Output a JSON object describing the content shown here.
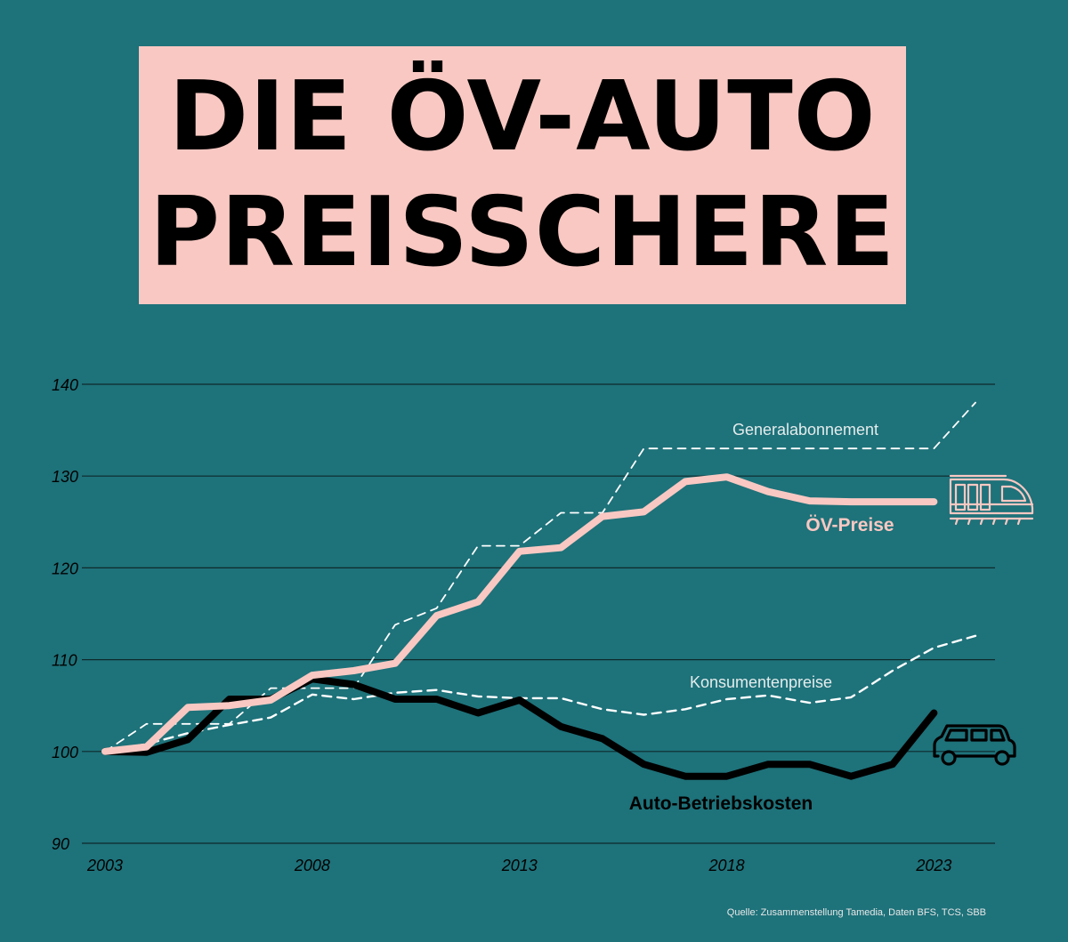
{
  "title": {
    "line1": "DIE ÖV-AUTO",
    "line2": "PREISSCHERE"
  },
  "source": "Quelle: Zusammenstellung Tamedia, Daten BFS, TCS, SBB",
  "colors": {
    "background": "#1e727a",
    "title_box": "#f9c8c2",
    "oev": "#f9c8c2",
    "auto": "#000000",
    "dashed": "#ffffff"
  },
  "chart_data": {
    "type": "line",
    "title": "DIE ÖV-AUTO PREISSCHERE",
    "xlabel": "",
    "ylabel": "",
    "xlim": [
      2003,
      2025
    ],
    "ylim": [
      90,
      140
    ],
    "x_ticks": [
      "2003",
      "2008",
      "2013",
      "2018",
      "2023"
    ],
    "y_ticks": [
      "90",
      "100",
      "110",
      "120",
      "130",
      "140"
    ],
    "grid": true,
    "series": [
      {
        "name": "ÖV-Preise",
        "style": "solid-thick",
        "x": [
          2003,
          2004,
          2005,
          2006,
          2007,
          2008,
          2009,
          2010,
          2011,
          2012,
          2013,
          2014,
          2015,
          2016,
          2017,
          2018,
          2019,
          2020,
          2021,
          2022,
          2023
        ],
        "values": [
          100,
          100.5,
          104.8,
          105,
          105.6,
          108.3,
          108.8,
          109.6,
          114.8,
          116.3,
          121.8,
          122.2,
          125.6,
          126.1,
          129.4,
          129.9,
          128.3,
          127.3,
          127.2,
          127.2,
          127.2
        ]
      },
      {
        "name": "Auto-Betriebskosten",
        "style": "solid-thick",
        "x": [
          2003,
          2004,
          2005,
          2006,
          2007,
          2008,
          2009,
          2010,
          2011,
          2012,
          2013,
          2014,
          2015,
          2016,
          2017,
          2018,
          2019,
          2020,
          2021,
          2022,
          2023
        ],
        "values": [
          100,
          99.9,
          101.3,
          105.7,
          105.7,
          107.9,
          107.3,
          105.7,
          105.7,
          104.2,
          105.6,
          102.7,
          101.4,
          98.6,
          97.3,
          97.3,
          98.6,
          98.6,
          97.3,
          98.6,
          104.2
        ]
      },
      {
        "name": "Generalabonnement",
        "style": "dashed",
        "x": [
          2003,
          2004,
          2005,
          2006,
          2007,
          2008,
          2009,
          2010,
          2011,
          2012,
          2013,
          2014,
          2015,
          2016,
          2017,
          2018,
          2019,
          2020,
          2021,
          2022,
          2023,
          2024
        ],
        "values": [
          100,
          103,
          103,
          103,
          106.9,
          106.9,
          106.9,
          113.8,
          115.6,
          122.4,
          122.4,
          126,
          126,
          133,
          133,
          133,
          133,
          133,
          133,
          133,
          133,
          138
        ]
      },
      {
        "name": "Konsumentenpreise",
        "style": "dashed",
        "x": [
          2003,
          2004,
          2005,
          2006,
          2007,
          2008,
          2009,
          2010,
          2011,
          2012,
          2013,
          2014,
          2015,
          2016,
          2017,
          2018,
          2019,
          2020,
          2021,
          2022,
          2023,
          2024
        ],
        "values": [
          100,
          100.8,
          102,
          102.9,
          103.7,
          106.2,
          105.7,
          106.4,
          106.7,
          106,
          105.8,
          105.8,
          104.6,
          104,
          104.6,
          105.7,
          106.1,
          105.3,
          105.9,
          108.8,
          111.3,
          112.6
        ]
      }
    ],
    "annotations": [
      {
        "text": "Generalabonnement",
        "series": "Generalabonnement"
      },
      {
        "text": "ÖV-Preise",
        "series": "ÖV-Preise"
      },
      {
        "text": "Konsumentenpreise",
        "series": "Konsumentenpreise"
      },
      {
        "text": "Auto-Betriebskosten",
        "series": "Auto-Betriebskosten"
      }
    ],
    "icons": [
      "train-icon",
      "car-icon"
    ]
  }
}
